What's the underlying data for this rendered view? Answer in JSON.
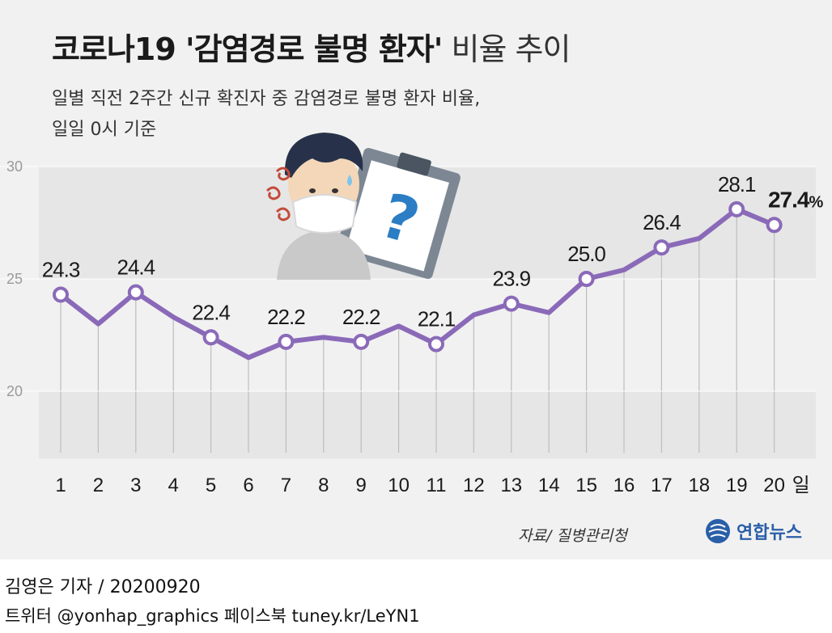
{
  "header": {
    "title_bold": "코로나19 '감염경로 불명 환자'",
    "title_light": "비율 추이",
    "subtitle_line1": "일별 직전 2주간 신규 확진자 중 감염경로 불명 환자 비율,",
    "subtitle_line2": "일일 0시 기준"
  },
  "chart_data": {
    "type": "line",
    "x": [
      1,
      2,
      3,
      4,
      5,
      6,
      7,
      8,
      9,
      10,
      11,
      12,
      13,
      14,
      15,
      16,
      17,
      18,
      19,
      20
    ],
    "series": [
      {
        "values": [
          24.3,
          23.0,
          24.4,
          23.3,
          22.4,
          21.5,
          22.2,
          22.4,
          22.2,
          22.9,
          22.1,
          23.4,
          23.9,
          23.5,
          25.0,
          25.4,
          26.4,
          26.8,
          28.1,
          27.4
        ]
      }
    ],
    "labeled_points": [
      {
        "x": 1,
        "label": "24.3"
      },
      {
        "x": 3,
        "label": "24.4"
      },
      {
        "x": 5,
        "label": "22.4"
      },
      {
        "x": 7,
        "label": "22.2"
      },
      {
        "x": 9,
        "label": "22.2"
      },
      {
        "x": 11,
        "label": "22.1"
      },
      {
        "x": 13,
        "label": "23.9"
      },
      {
        "x": 15,
        "label": "25.0"
      },
      {
        "x": 17,
        "label": "26.4"
      },
      {
        "x": 19,
        "label": "28.1"
      }
    ],
    "final_label": {
      "x": 20,
      "value": "27.4",
      "unit": "%"
    },
    "y_ticks": [
      "30",
      "25",
      "20"
    ],
    "x_tick_labels": [
      "1",
      "2",
      "3",
      "4",
      "5",
      "6",
      "7",
      "8",
      "9",
      "10",
      "11",
      "12",
      "13",
      "14",
      "15",
      "16",
      "17",
      "18",
      "19",
      "20"
    ],
    "x_unit": "일",
    "ylim": [
      17,
      30
    ],
    "line_color": "#8a6ab8",
    "grid": true
  },
  "footer": {
    "source": "자료/ 질병관리청",
    "logo_text": "연합뉴스",
    "author": "김영은 기자 / 20200920",
    "social": "트위터 @yonhap_graphics  페이스북 tuney.kr/LeYN1"
  }
}
